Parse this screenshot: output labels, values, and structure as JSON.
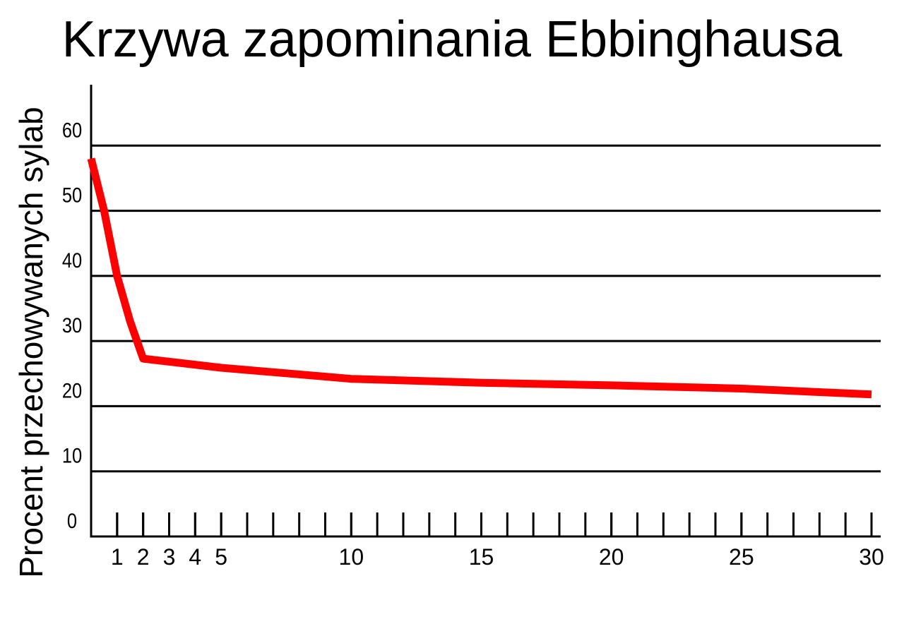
{
  "chart_data": {
    "type": "line",
    "title": "Krzywa zapominania Ebbinghausa",
    "y_label": "Procent przechowywanych sylab",
    "x": [
      0,
      0.5,
      1,
      1.5,
      2,
      5,
      10,
      15,
      20,
      25,
      30
    ],
    "series": [
      {
        "color": "#ff0000",
        "values": [
          58,
          50,
          40,
          33,
          27.3,
          25.9,
          24.2,
          23.6,
          23.2,
          22.7,
          21.8
        ]
      }
    ],
    "xlim": [
      0,
      30
    ],
    "xticks": [
      1,
      2,
      3,
      4,
      5,
      10,
      15,
      20,
      25,
      30
    ],
    "xminor_step": 1,
    "ylim": [
      0,
      70
    ],
    "yticks": [
      0,
      10,
      20,
      30,
      40,
      50,
      60
    ],
    "grid": true
  }
}
